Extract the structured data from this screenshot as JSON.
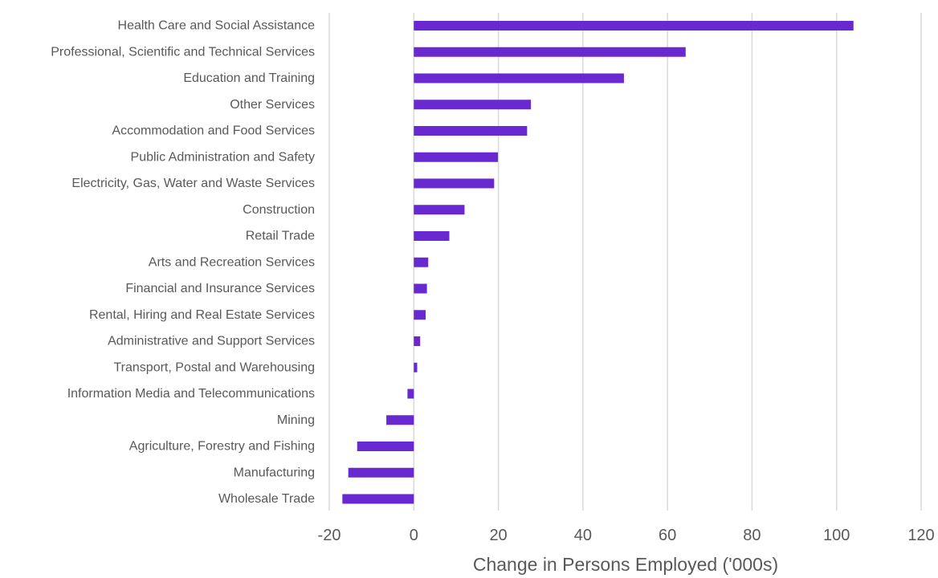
{
  "chart_data": {
    "type": "bar",
    "orientation": "horizontal",
    "title": "",
    "xlabel": "Change in Persons Employed ('000s)",
    "ylabel": "",
    "xlim": [
      -20,
      120
    ],
    "xticks": [
      -20,
      0,
      20,
      40,
      60,
      80,
      100,
      120
    ],
    "grid": "vertical",
    "legend": "none",
    "bar_color": "#6929d1",
    "categories": [
      "Health Care and Social Assistance",
      "Professional, Scientific and Technical Services",
      "Education and Training",
      "Other Services",
      "Accommodation and Food Services",
      "Public Administration and Safety",
      "Electricity, Gas, Water and Waste Services",
      "Construction",
      "Retail Trade",
      "Arts and Recreation Services",
      "Financial and Insurance Services",
      "Rental, Hiring and Real Estate Services",
      "Administrative and Support Services",
      "Transport, Postal and Warehousing",
      "Information Media and Telecommunications",
      "Mining",
      "Agriculture, Forestry and Fishing",
      "Manufacturing",
      "Wholesale Trade"
    ],
    "values": [
      104,
      64.3,
      49.7,
      27.7,
      26.8,
      19.9,
      19.0,
      12.0,
      8.4,
      3.4,
      3.1,
      2.8,
      1.5,
      0.8,
      -1.5,
      -6.5,
      -13.4,
      -15.5,
      -16.9
    ]
  }
}
